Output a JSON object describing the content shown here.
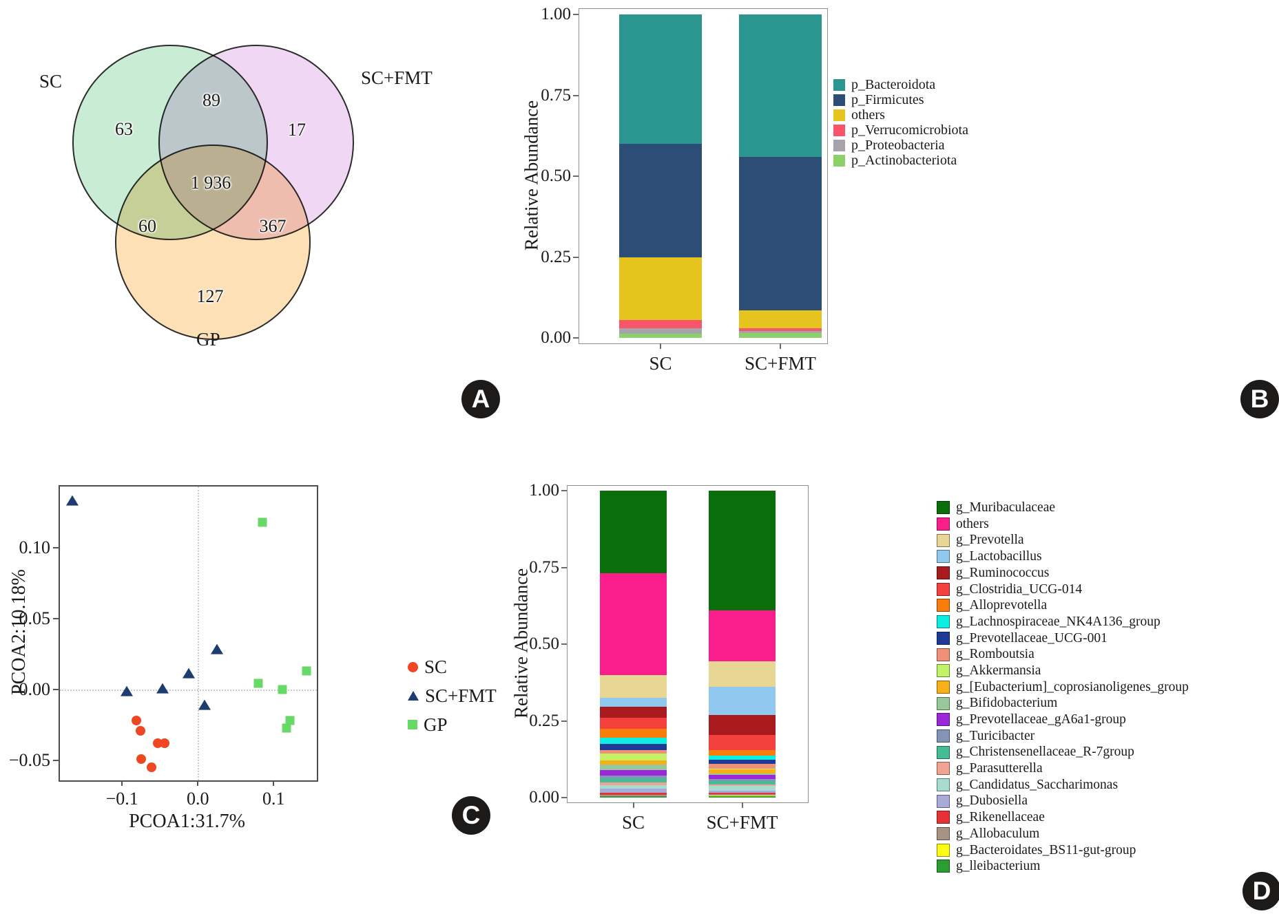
{
  "panels": {
    "a": "A",
    "b": "B",
    "c": "C",
    "d": "D"
  },
  "venn": {
    "set_labels": [
      {
        "name": "SC",
        "text": "SC"
      },
      {
        "name": "SC+FMT",
        "text": "SC+FMT"
      },
      {
        "name": "GP",
        "text": "GP"
      }
    ],
    "regions": [
      {
        "name": "SC-only",
        "value": "63"
      },
      {
        "name": "SC-and-SCFMT",
        "value": "89"
      },
      {
        "name": "SCFMT-only",
        "value": "17"
      },
      {
        "name": "SC-and-SCFMT-and-GP",
        "value": "1 936"
      },
      {
        "name": "SC-and-GP",
        "value": "60"
      },
      {
        "name": "SCFMT-and-GP",
        "value": "367"
      },
      {
        "name": "GP-only",
        "value": "127"
      }
    ],
    "colors": {
      "sc": "#c8ecd4",
      "sc_fmt": "#f0d7f4",
      "gp": "#fde0b6",
      "outline": "#2b2b2b"
    }
  },
  "chart_data": [
    {
      "id": "phylum_stacked_bar",
      "type": "bar",
      "stacked": true,
      "ylabel": "Relative Abundance",
      "categories": [
        "SC",
        "SC+FMT"
      ],
      "yticks": [
        "1.00",
        "0.75",
        "0.50",
        "0.25",
        "0.00"
      ],
      "ylim": [
        0,
        1
      ],
      "legend_position": "right",
      "series": [
        {
          "name": "p_Bacteroidota",
          "color": "#2a968f",
          "values": [
            0.4,
            0.44
          ]
        },
        {
          "name": "p_Firmicutes",
          "color": "#2c4d76",
          "values": [
            0.35,
            0.475
          ]
        },
        {
          "name": "others",
          "color": "#e4c41d",
          "values": [
            0.195,
            0.055
          ]
        },
        {
          "name": "p_Verrucomicrobiota",
          "color": "#f9556a",
          "values": [
            0.025,
            0.008
          ]
        },
        {
          "name": "p_Proteobacteria",
          "color": "#a8a2ab",
          "values": [
            0.018,
            0.007
          ]
        },
        {
          "name": "p_Actinobacteriota",
          "color": "#8cd069",
          "values": [
            0.012,
            0.015
          ]
        }
      ]
    },
    {
      "id": "pcoa_scatter",
      "type": "scatter",
      "xlabel": "PCOA1:31.7%",
      "ylabel": "PCOA2:10.18%",
      "xlim": [
        -0.182,
        0.157
      ],
      "ylim": [
        -0.064,
        0.143
      ],
      "grid": {
        "x": 0,
        "y": 0
      },
      "xticks": [
        {
          "v": -0.1,
          "label": "−0.1"
        },
        {
          "v": 0,
          "label": "0.0"
        },
        {
          "v": 0.1,
          "label": "0.1"
        }
      ],
      "yticks": [
        {
          "v": 0.1,
          "label": "0.10"
        },
        {
          "v": 0.05,
          "label": "0.05"
        },
        {
          "v": 0,
          "label": "0.00"
        },
        {
          "v": -0.05,
          "label": "−0.05"
        }
      ],
      "series": [
        {
          "name": "SC",
          "marker": "circle",
          "color": "#f04723",
          "points": [
            [
              -0.081,
              -0.022
            ],
            [
              -0.0755,
              -0.029
            ],
            [
              -0.053,
              -0.038
            ],
            [
              -0.0435,
              -0.038
            ],
            [
              -0.0745,
              -0.049
            ],
            [
              -0.0615,
              -0.055
            ]
          ]
        },
        {
          "name": "SC+FMT",
          "marker": "triangle",
          "color": "#1d3c6f",
          "points": [
            [
              -0.166,
              0.133
            ],
            [
              0.0255,
              0.028
            ],
            [
              -0.012,
              0.011
            ],
            [
              -0.047,
              0.0005
            ],
            [
              -0.094,
              -0.0015
            ],
            [
              0.009,
              -0.011
            ]
          ]
        },
        {
          "name": "GP",
          "marker": "square",
          "color": "#66d966",
          "points": [
            [
              0.085,
              0.118
            ],
            [
              0.08,
              0.0044
            ],
            [
              0.112,
              0.0
            ],
            [
              0.143,
              0.013
            ],
            [
              0.122,
              -0.022
            ],
            [
              0.117,
              -0.027
            ]
          ]
        }
      ]
    },
    {
      "id": "genus_stacked_bar",
      "type": "bar",
      "stacked": true,
      "ylabel": "Relative Abundance",
      "categories": [
        "SC",
        "SC+FMT"
      ],
      "yticks": [
        "1.00",
        "0.75",
        "0.50",
        "0.25",
        "0.00"
      ],
      "ylim": [
        0,
        1
      ],
      "legend_position": "right",
      "series": [
        {
          "name": "g_Muribaculaceae",
          "color": "#0a6e0a",
          "values": [
            0.27,
            0.39
          ]
        },
        {
          "name": "others",
          "color": "#fa1e8c",
          "values": [
            0.33,
            0.165
          ]
        },
        {
          "name": "g_Prevotella",
          "color": "#e8d694",
          "values": [
            0.075,
            0.085
          ]
        },
        {
          "name": "g_Lactobacillus",
          "color": "#90c8f0",
          "values": [
            0.03,
            0.09
          ]
        },
        {
          "name": "g_Ruminococcus",
          "color": "#a81a1e",
          "values": [
            0.035,
            0.065
          ]
        },
        {
          "name": "g_Clostridia_UCG-014",
          "color": "#f4413e",
          "values": [
            0.035,
            0.05
          ]
        },
        {
          "name": "g_Alloprevotella",
          "color": "#f87d0a",
          "values": [
            0.03,
            0.018
          ]
        },
        {
          "name": "g_Lachnospiraceae_NK4A136_group",
          "color": "#0ceee2",
          "values": [
            0.02,
            0.014
          ]
        },
        {
          "name": "g_Prevotellaceae_UCG-001",
          "color": "#1e3a96",
          "values": [
            0.02,
            0.013
          ]
        },
        {
          "name": "g_Romboutsia",
          "color": "#f09078",
          "values": [
            0.012,
            0.015
          ]
        },
        {
          "name": "g_Akkermansia",
          "color": "#c2f266",
          "values": [
            0.022,
            0.004
          ]
        },
        {
          "name": "g_[Eubacterium]_coprosianoligenes_group",
          "color": "#f8b018",
          "values": [
            0.013,
            0.012
          ]
        },
        {
          "name": "g_Bifidobacterium",
          "color": "#96c89c",
          "values": [
            0.018,
            0.006
          ]
        },
        {
          "name": "g_Prevotellaceae_gA6a1-group",
          "color": "#9c28da",
          "values": [
            0.018,
            0.012
          ]
        },
        {
          "name": "g_Turicibacter",
          "color": "#8494b8",
          "values": [
            0.01,
            0.008
          ]
        },
        {
          "name": "g_Christensenellaceae_R-7group",
          "color": "#46bc96",
          "values": [
            0.012,
            0.01
          ]
        },
        {
          "name": "g_Parasutterella",
          "color": "#f2a494",
          "values": [
            0.01,
            0.006
          ]
        },
        {
          "name": "g_Candidatus_Saccharimonas",
          "color": "#a8dcd0",
          "values": [
            0.012,
            0.014
          ]
        },
        {
          "name": "g_Dubosiella",
          "color": "#a8abda",
          "values": [
            0.012,
            0.007
          ]
        },
        {
          "name": "g_Rikenellaceae",
          "color": "#e63236",
          "values": [
            0.007,
            0.006
          ]
        },
        {
          "name": "g_Allobaculum",
          "color": "#a69384",
          "values": [
            0.004,
            0.004
          ]
        },
        {
          "name": "g_Bacteroidates_BS11-gut-group",
          "color": "#fbfb14",
          "values": [
            0.002,
            0.002
          ]
        },
        {
          "name": "g_lleibacterium",
          "color": "#2a9e32",
          "values": [
            0.003,
            0.004
          ]
        }
      ]
    }
  ]
}
